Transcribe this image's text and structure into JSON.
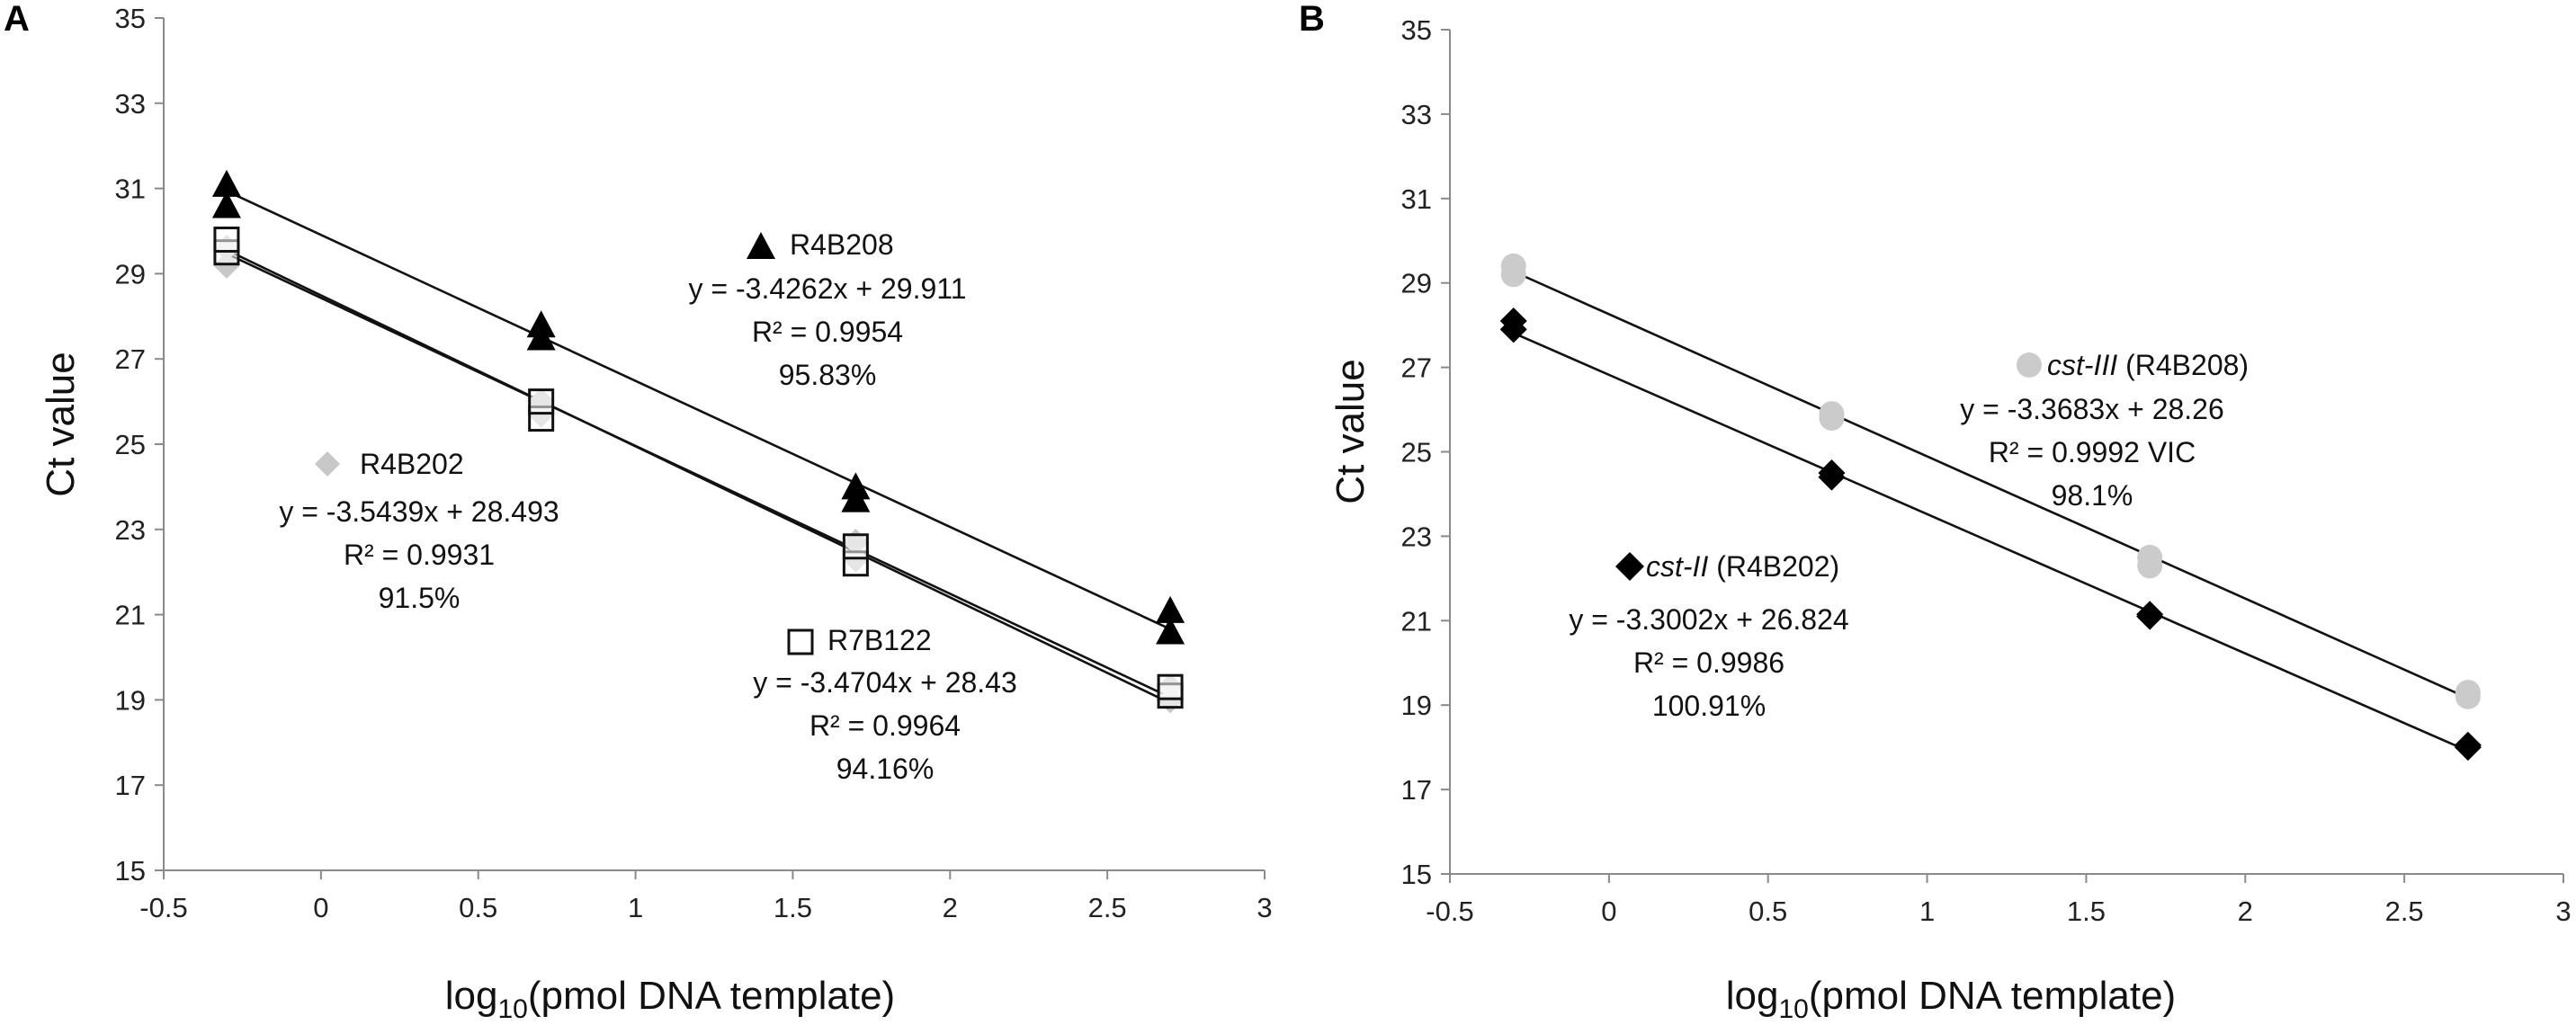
{
  "chart_data": [
    {
      "panel": "A",
      "type": "scatter",
      "xlabel_main": "log",
      "xlabel_sub": "10",
      "xlabel_rest": "(pmol DNA template)",
      "ylabel": "Ct value",
      "xlim": [
        -0.5,
        3
      ],
      "ylim": [
        15,
        35
      ],
      "xticks": [
        -0.5,
        0,
        0.5,
        1,
        1.5,
        2,
        2.5,
        3
      ],
      "xtick_labels": [
        "-0.5",
        "0",
        "0.5",
        "1",
        "1.5",
        "2",
        "2.5",
        "3"
      ],
      "yticks": [
        15,
        17,
        19,
        21,
        23,
        25,
        27,
        29,
        31,
        33,
        35
      ],
      "ytick_labels": [
        "15",
        "17",
        "19",
        "21",
        "23",
        "25",
        "27",
        "29",
        "31",
        "33",
        "35"
      ],
      "series": [
        {
          "name": "R4B202",
          "marker": "diamond",
          "color": "#c8c8c8",
          "stroke": "#c8c8c8",
          "points": [
            [
              -0.3,
              29.2
            ],
            [
              -0.3,
              29.6
            ],
            [
              0.7,
              26.0
            ],
            [
              0.7,
              25.7
            ],
            [
              1.7,
              22.7
            ],
            [
              1.7,
              22.3
            ],
            [
              2.7,
              19.0
            ],
            [
              2.7,
              19.3
            ]
          ],
          "fit": {
            "slope": -3.5439,
            "intercept": 28.493
          },
          "equation": "y = -3.5439x + 28.493",
          "r2": "R² = 0.9931",
          "efficiency": "91.5%"
        },
        {
          "name": "R7B122",
          "marker": "square-open",
          "color": "#ffffff",
          "stroke": "#111111",
          "points": [
            [
              -0.3,
              29.5
            ],
            [
              -0.3,
              29.8
            ],
            [
              0.7,
              25.6
            ],
            [
              0.7,
              26.0
            ],
            [
              1.7,
              22.2
            ],
            [
              1.7,
              22.6
            ],
            [
              2.7,
              19.1
            ],
            [
              2.7,
              19.3
            ]
          ],
          "fit": {
            "slope": -3.4704,
            "intercept": 28.43
          },
          "equation": "y = -3.4704x + 28.43",
          "r2": "R² = 0.9964",
          "efficiency": "94.16%"
        },
        {
          "name": "R4B208",
          "marker": "triangle",
          "color": "#000000",
          "stroke": "#000000",
          "points": [
            [
              -0.3,
              30.6
            ],
            [
              -0.3,
              31.1
            ],
            [
              0.7,
              27.5
            ],
            [
              0.7,
              27.8
            ],
            [
              1.7,
              23.7
            ],
            [
              1.7,
              24.0
            ],
            [
              2.7,
              20.6
            ],
            [
              2.7,
              21.1
            ]
          ],
          "fit": {
            "slope": -3.4262,
            "intercept": 29.911
          },
          "equation": "y = -3.4262x + 29.911",
          "r2": "R² = 0.9954",
          "efficiency": "95.83%"
        }
      ]
    },
    {
      "panel": "B",
      "type": "scatter",
      "xlabel_main": "log",
      "xlabel_sub": "10",
      "xlabel_rest": "(pmol DNA template)",
      "ylabel": "Ct value",
      "xlim": [
        -0.5,
        3
      ],
      "ylim": [
        15,
        35
      ],
      "xticks": [
        -0.5,
        0,
        0.5,
        1,
        1.5,
        2,
        2.5,
        3
      ],
      "xtick_labels": [
        "-0.5",
        "0",
        "0.5",
        "1",
        "1.5",
        "2",
        "2.5",
        "3"
      ],
      "yticks": [
        15,
        17,
        19,
        21,
        23,
        25,
        27,
        29,
        31,
        33,
        35
      ],
      "ytick_labels": [
        "15",
        "17",
        "19",
        "21",
        "23",
        "25",
        "27",
        "29",
        "31",
        "33",
        "35"
      ],
      "series": [
        {
          "name_italic": "cst-III",
          "name_rest": " (R4B208)",
          "marker": "circle",
          "color": "#cbcbcb",
          "stroke": "#cbcbcb",
          "points": [
            [
              -0.3,
              29.4
            ],
            [
              -0.3,
              29.2
            ],
            [
              0.7,
              25.9
            ],
            [
              0.7,
              25.8
            ],
            [
              1.7,
              22.5
            ],
            [
              1.7,
              22.3
            ],
            [
              2.7,
              19.3
            ],
            [
              2.7,
              19.2
            ]
          ],
          "fit": {
            "slope": -3.3683,
            "intercept": 28.26
          },
          "equation": "y = -3.3683x + 28.26",
          "r2": "R² = 0.9992 VIC",
          "efficiency": "98.1%"
        },
        {
          "name_italic": "cst-II",
          "name_rest": " (R4B202)",
          "marker": "diamond",
          "color": "#000000",
          "stroke": "#000000",
          "points": [
            [
              -0.3,
              28.1
            ],
            [
              -0.3,
              27.9
            ],
            [
              0.7,
              24.5
            ],
            [
              0.7,
              24.4
            ],
            [
              1.7,
              21.1
            ],
            [
              1.7,
              21.15
            ],
            [
              2.7,
              18.05
            ],
            [
              2.7,
              18.0
            ]
          ],
          "fit": {
            "slope": -3.3002,
            "intercept": 26.824
          },
          "equation": "y = -3.3002x + 26.824",
          "r2": "R² = 0.9986",
          "efficiency": "100.91%"
        }
      ]
    }
  ]
}
